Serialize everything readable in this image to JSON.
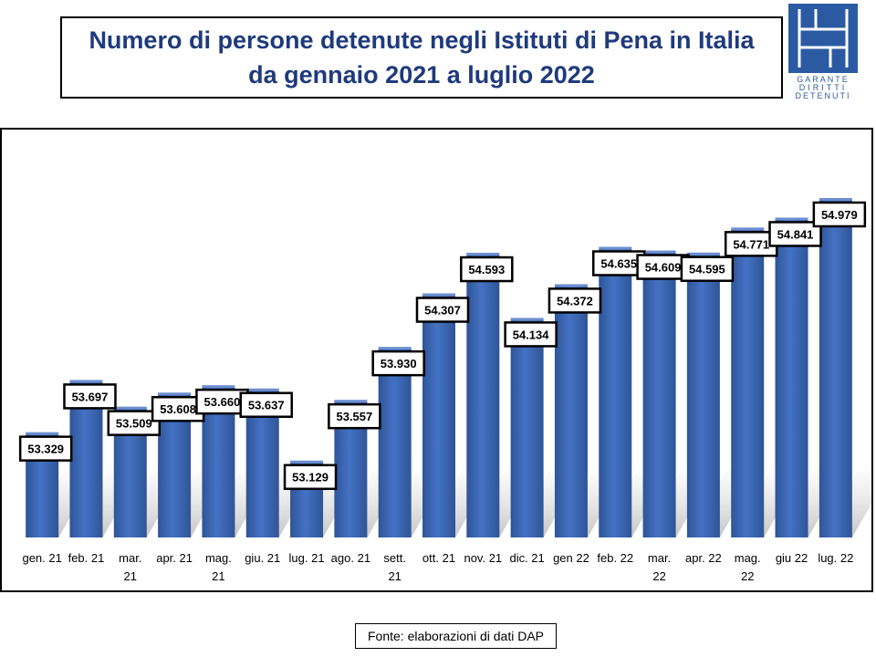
{
  "title": "Numero di persone detenute negli Istituti di Pena in Italia\nda gennaio 2021 a luglio 2022",
  "logo": {
    "line1": "GARANTE",
    "line2": "DIRITTI",
    "line3": "DETENUTI",
    "color": "#2b5aa3"
  },
  "source": "Fonte: elaborazioni di dati DAP",
  "colors": {
    "bar": "#4472c4",
    "bar_dark": "#2f5597",
    "title": "#1f3a7d"
  },
  "chart_data": {
    "type": "bar",
    "title": "",
    "xlabel": "",
    "ylabel": "",
    "ylim": [
      52600,
      55200
    ],
    "grid": false,
    "categories": [
      "gen. 21",
      "feb. 21",
      "mar. 21",
      "apr. 21",
      "mag. 21",
      "giu. 21",
      "lug. 21",
      "ago. 21",
      "sett. 21",
      "ott. 21",
      "nov. 21",
      "dic. 21",
      "gen 22",
      "feb. 22",
      "mar. 22",
      "apr. 22",
      "mag. 22",
      "giu 22",
      "lug. 22"
    ],
    "values": [
      53329,
      53697,
      53509,
      53608,
      53660,
      53637,
      53129,
      53557,
      53930,
      54307,
      54593,
      54134,
      54372,
      54635,
      54609,
      54595,
      54771,
      54841,
      54979
    ],
    "data_labels": [
      "53.329",
      "53.697",
      "53.509",
      "53.608",
      "53.660",
      "53.637",
      "53.129",
      "53.557",
      "53.930",
      "54.307",
      "54.593",
      "54.134",
      "54.372",
      "54.635",
      "54.609",
      "54.595",
      "54.771",
      "54.841",
      "54.979"
    ]
  }
}
